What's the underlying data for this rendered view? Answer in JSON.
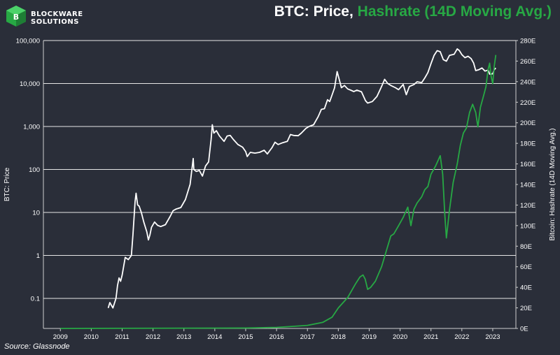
{
  "header": {
    "logo_line1": "BLOCKWARE",
    "logo_line2": "SOLUTIONS",
    "title_price": "BTC: Price,",
    "title_hashrate": "Hashrate (14D Moving Avg.)"
  },
  "footer": {
    "source": "Source: Glassnode"
  },
  "colors": {
    "background": "#2a2e39",
    "price": "#ffffff",
    "hashrate": "#27a844",
    "grid": "#e6e6e6"
  },
  "chart_data": {
    "type": "line",
    "title": "BTC: Price, Hashrate (14D Moving Avg.)",
    "ylabel_left": "BTC: Price",
    "ylabel_right": "Bitcoin: Hashrate (14D Moving Avg.)",
    "y_left_scale": "log",
    "ylim_left": [
      0.02,
      100000
    ],
    "ylim_right": [
      0,
      280
    ],
    "x_ticks": [
      "2009",
      "2010",
      "2011",
      "2012",
      "2013",
      "2014",
      "2015",
      "2016",
      "2017",
      "2018",
      "2019",
      "2020",
      "2021",
      "2022",
      "2023"
    ],
    "y_left_ticks": [
      "100,000",
      "10,000",
      "1,000",
      "100",
      "10",
      "1",
      "0.1"
    ],
    "y_right_ticks": [
      "280E",
      "260E",
      "240E",
      "220E",
      "200E",
      "180E",
      "160E",
      "140E",
      "120E",
      "100E",
      "80E",
      "60E",
      "40E",
      "20E",
      "0E"
    ],
    "grid": "horizontal",
    "series": [
      {
        "name": "Price",
        "axis": "left",
        "color": "#ffffff",
        "points": [
          [
            2010.55,
            0.06
          ],
          [
            2010.6,
            0.08
          ],
          [
            2010.7,
            0.06
          ],
          [
            2010.8,
            0.1
          ],
          [
            2010.85,
            0.2
          ],
          [
            2010.9,
            0.3
          ],
          [
            2010.95,
            0.25
          ],
          [
            2011.0,
            0.35
          ],
          [
            2011.1,
            0.9
          ],
          [
            2011.2,
            0.8
          ],
          [
            2011.3,
            1.0
          ],
          [
            2011.35,
            3
          ],
          [
            2011.42,
            18
          ],
          [
            2011.45,
            28
          ],
          [
            2011.5,
            15
          ],
          [
            2011.55,
            14
          ],
          [
            2011.62,
            10
          ],
          [
            2011.7,
            6
          ],
          [
            2011.8,
            3.5
          ],
          [
            2011.85,
            2.3
          ],
          [
            2011.9,
            3
          ],
          [
            2011.95,
            4.5
          ],
          [
            2012.05,
            6
          ],
          [
            2012.15,
            5
          ],
          [
            2012.25,
            4.7
          ],
          [
            2012.4,
            5.2
          ],
          [
            2012.55,
            8
          ],
          [
            2012.65,
            11
          ],
          [
            2012.75,
            12
          ],
          [
            2012.9,
            13
          ],
          [
            2013.05,
            20
          ],
          [
            2013.2,
            45
          ],
          [
            2013.3,
            180
          ],
          [
            2013.32,
            100
          ],
          [
            2013.4,
            90
          ],
          [
            2013.5,
            95
          ],
          [
            2013.6,
            70
          ],
          [
            2013.7,
            120
          ],
          [
            2013.8,
            150
          ],
          [
            2013.88,
            500
          ],
          [
            2013.92,
            1100
          ],
          [
            2013.97,
            700
          ],
          [
            2014.05,
            800
          ],
          [
            2014.15,
            600
          ],
          [
            2014.3,
            450
          ],
          [
            2014.4,
            600
          ],
          [
            2014.5,
            620
          ],
          [
            2014.6,
            500
          ],
          [
            2014.75,
            380
          ],
          [
            2014.9,
            330
          ],
          [
            2015.0,
            260
          ],
          [
            2015.05,
            200
          ],
          [
            2015.15,
            250
          ],
          [
            2015.3,
            240
          ],
          [
            2015.45,
            250
          ],
          [
            2015.6,
            280
          ],
          [
            2015.7,
            230
          ],
          [
            2015.85,
            320
          ],
          [
            2015.95,
            430
          ],
          [
            2016.05,
            380
          ],
          [
            2016.2,
            420
          ],
          [
            2016.35,
            450
          ],
          [
            2016.45,
            650
          ],
          [
            2016.55,
            620
          ],
          [
            2016.7,
            610
          ],
          [
            2016.8,
            700
          ],
          [
            2016.95,
            900
          ],
          [
            2017.05,
            1000
          ],
          [
            2017.2,
            1100
          ],
          [
            2017.35,
            1700
          ],
          [
            2017.45,
            2500
          ],
          [
            2017.55,
            2600
          ],
          [
            2017.65,
            4200
          ],
          [
            2017.72,
            3800
          ],
          [
            2017.8,
            5500
          ],
          [
            2017.88,
            8000
          ],
          [
            2017.96,
            19000
          ],
          [
            2018.05,
            11000
          ],
          [
            2018.1,
            8000
          ],
          [
            2018.2,
            9000
          ],
          [
            2018.3,
            7500
          ],
          [
            2018.4,
            7000
          ],
          [
            2018.5,
            6500
          ],
          [
            2018.6,
            7000
          ],
          [
            2018.75,
            6400
          ],
          [
            2018.88,
            4000
          ],
          [
            2018.95,
            3500
          ],
          [
            2019.1,
            3800
          ],
          [
            2019.25,
            5000
          ],
          [
            2019.4,
            8500
          ],
          [
            2019.5,
            12500
          ],
          [
            2019.6,
            10000
          ],
          [
            2019.7,
            9000
          ],
          [
            2019.85,
            8000
          ],
          [
            2019.95,
            7200
          ],
          [
            2020.1,
            9500
          ],
          [
            2020.2,
            5500
          ],
          [
            2020.3,
            8500
          ],
          [
            2020.45,
            9500
          ],
          [
            2020.55,
            11000
          ],
          [
            2020.7,
            10500
          ],
          [
            2020.8,
            13500
          ],
          [
            2020.9,
            18000
          ],
          [
            2021.0,
            29000
          ],
          [
            2021.1,
            45000
          ],
          [
            2021.2,
            58000
          ],
          [
            2021.3,
            55000
          ],
          [
            2021.4,
            36000
          ],
          [
            2021.5,
            33000
          ],
          [
            2021.6,
            45000
          ],
          [
            2021.75,
            48000
          ],
          [
            2021.85,
            64000
          ],
          [
            2021.92,
            58000
          ],
          [
            2022.0,
            47000
          ],
          [
            2022.1,
            40000
          ],
          [
            2022.2,
            43000
          ],
          [
            2022.3,
            38000
          ],
          [
            2022.38,
            30000
          ],
          [
            2022.45,
            20000
          ],
          [
            2022.55,
            21000
          ],
          [
            2022.65,
            23000
          ],
          [
            2022.75,
            19500
          ],
          [
            2022.85,
            20500
          ],
          [
            2022.9,
            16500
          ],
          [
            2023.0,
            16800
          ],
          [
            2023.05,
            21000
          ],
          [
            2023.1,
            23000
          ]
        ]
      },
      {
        "name": "Hashrate (14D Moving Avg.)",
        "axis": "right",
        "color": "#27a844",
        "points": [
          [
            2009.0,
            0
          ],
          [
            2015.0,
            0.4
          ],
          [
            2016.0,
            1
          ],
          [
            2016.5,
            2
          ],
          [
            2017.0,
            3
          ],
          [
            2017.5,
            6
          ],
          [
            2017.8,
            11
          ],
          [
            2018.0,
            20
          ],
          [
            2018.3,
            30
          ],
          [
            2018.55,
            43
          ],
          [
            2018.7,
            50
          ],
          [
            2018.8,
            52
          ],
          [
            2018.87,
            48
          ],
          [
            2018.95,
            38
          ],
          [
            2019.05,
            40
          ],
          [
            2019.2,
            46
          ],
          [
            2019.4,
            60
          ],
          [
            2019.55,
            75
          ],
          [
            2019.7,
            90
          ],
          [
            2019.8,
            92
          ],
          [
            2019.95,
            100
          ],
          [
            2020.1,
            108
          ],
          [
            2020.25,
            118
          ],
          [
            2020.35,
            100
          ],
          [
            2020.45,
            116
          ],
          [
            2020.55,
            122
          ],
          [
            2020.7,
            128
          ],
          [
            2020.8,
            135
          ],
          [
            2020.9,
            138
          ],
          [
            2021.0,
            150
          ],
          [
            2021.15,
            158
          ],
          [
            2021.3,
            168
          ],
          [
            2021.38,
            150
          ],
          [
            2021.45,
            110
          ],
          [
            2021.5,
            88
          ],
          [
            2021.6,
            115
          ],
          [
            2021.72,
            142
          ],
          [
            2021.85,
            160
          ],
          [
            2021.95,
            178
          ],
          [
            2022.05,
            190
          ],
          [
            2022.15,
            195
          ],
          [
            2022.25,
            210
          ],
          [
            2022.35,
            218
          ],
          [
            2022.45,
            210
          ],
          [
            2022.52,
            196
          ],
          [
            2022.6,
            215
          ],
          [
            2022.7,
            226
          ],
          [
            2022.78,
            235
          ],
          [
            2022.85,
            252
          ],
          [
            2022.9,
            258
          ],
          [
            2022.95,
            245
          ],
          [
            2023.0,
            238
          ],
          [
            2023.05,
            255
          ],
          [
            2023.1,
            266
          ]
        ]
      }
    ]
  }
}
